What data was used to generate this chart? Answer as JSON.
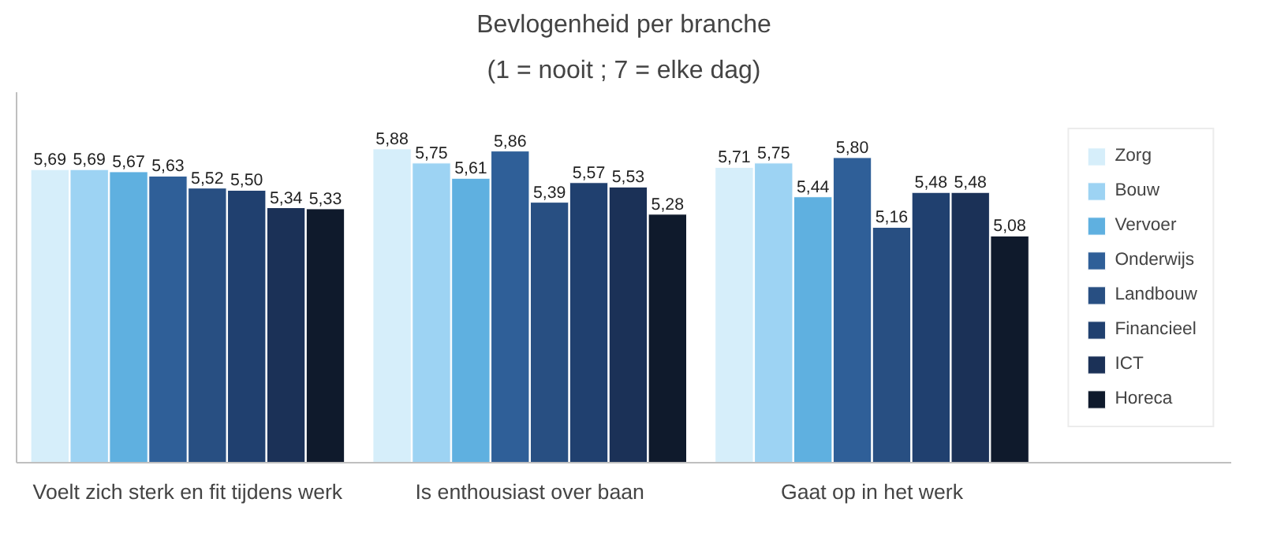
{
  "chart_data": {
    "type": "bar",
    "title": "Bevlogenheid per branche",
    "subtitle": "(1 = nooit ; 7 = elke dag)",
    "categories": [
      "Voelt zich sterk en fit tijdens werk",
      "Is enthousiast over baan",
      "Gaat op in het werk"
    ],
    "series": [
      {
        "name": "Zorg",
        "color": "#d6eefa",
        "values": [
          5.69,
          5.88,
          5.71
        ],
        "value_labels": [
          "5,69",
          "5,88",
          "5,71"
        ]
      },
      {
        "name": "Bouw",
        "color": "#9dd3f3",
        "values": [
          5.69,
          5.75,
          5.75
        ],
        "value_labels": [
          "5,69",
          "5,75",
          "5,75"
        ]
      },
      {
        "name": "Vervoer",
        "color": "#5fb0e0",
        "values": [
          5.67,
          5.61,
          5.44
        ],
        "value_labels": [
          "5,67",
          "5,61",
          "5,44"
        ]
      },
      {
        "name": "Onderwijs",
        "color": "#2f5f98",
        "values": [
          5.63,
          5.86,
          5.8
        ],
        "value_labels": [
          "5,63",
          "5,86",
          "5,80"
        ]
      },
      {
        "name": "Landbouw",
        "color": "#284f82",
        "values": [
          5.52,
          5.39,
          5.16
        ],
        "value_labels": [
          "5,52",
          "5,39",
          "5,16"
        ]
      },
      {
        "name": "Financieel",
        "color": "#20406f",
        "values": [
          5.5,
          5.57,
          5.48
        ],
        "value_labels": [
          "5,50",
          "5,57",
          "5,48"
        ]
      },
      {
        "name": "ICT",
        "color": "#1b3157",
        "values": [
          5.34,
          5.53,
          5.48
        ],
        "value_labels": [
          "5,34",
          "5,53",
          "5,48"
        ]
      },
      {
        "name": "Horeca",
        "color": "#0f1a2c",
        "values": [
          5.33,
          5.28,
          5.08
        ],
        "value_labels": [
          "5,33",
          "5,28",
          "5,08"
        ]
      }
    ],
    "ylim": [
      3.0,
      6.4
    ],
    "tick_labels": "x",
    "grid": false,
    "legend": "right"
  }
}
